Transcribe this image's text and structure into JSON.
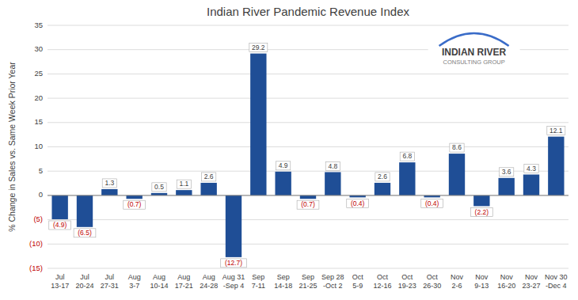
{
  "chart_data": {
    "type": "bar",
    "title": "Indian River Pandemic Revenue Index",
    "ylabel": "% Change in Sales vs. Same Week Prior Year",
    "categories": [
      "Jul\n13-17",
      "Jul\n20-24",
      "Jul\n27-31",
      "Aug\n3-7",
      "Aug\n10-14",
      "Aug\n17-21",
      "Aug\n24-28",
      "Aug 31\n-Sep 4",
      "Sep\n7-11",
      "Sep\n14-18",
      "Sep\n21-25",
      "Sep 28\n-Oct 2",
      "Oct\n5-9",
      "Oct\n12-16",
      "Oct\n19-23",
      "Oct\n26-30",
      "Nov\n2-6",
      "Nov\n9-13",
      "Nov\n16-20",
      "Nov\n23-27",
      "Nov 30\n-Dec 4"
    ],
    "values": [
      -4.9,
      -6.5,
      1.3,
      -0.7,
      0.5,
      1.1,
      2.6,
      -12.7,
      29.2,
      4.9,
      -0.7,
      4.8,
      -0.4,
      2.6,
      6.8,
      -0.4,
      8.6,
      -2.2,
      3.6,
      4.3,
      12.1
    ],
    "value_labels": [
      "(4.9)",
      "(6.5)",
      "1.3",
      "(0.7)",
      "0.5",
      "1.1",
      "2.6",
      "(12.7)",
      "29.2",
      "4.9",
      "(0.7)",
      "4.8",
      "(0.4)",
      "2.6",
      "6.8",
      "(0.4)",
      "8.6",
      "(2.2)",
      "3.6",
      "4.3",
      "12.1"
    ],
    "color": "#1F4E96",
    "ylim": [
      -15,
      35
    ],
    "yticks": [
      {
        "value": -15,
        "label": "(15)"
      },
      {
        "value": -10,
        "label": "(10)"
      },
      {
        "value": -5,
        "label": "(5)"
      },
      0,
      5,
      10,
      15,
      20,
      25,
      30,
      35
    ],
    "grid": true,
    "data_labels": true,
    "annotations": [
      "INDIAN RIVER",
      "CONSULTING GROUP"
    ]
  }
}
